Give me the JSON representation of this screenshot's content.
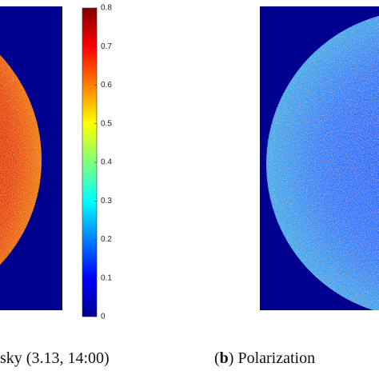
{
  "figure": {
    "colorbar": {
      "range": [
        0,
        0.8
      ],
      "ticks": [
        0,
        0.1,
        0.2,
        0.3,
        0.4,
        0.5,
        0.6,
        0.7,
        0.8
      ]
    },
    "captions": [
      {
        "text": "sky (3.13, 14:00)"
      },
      {
        "label": "b",
        "text": "Polarization"
      }
    ]
  }
}
